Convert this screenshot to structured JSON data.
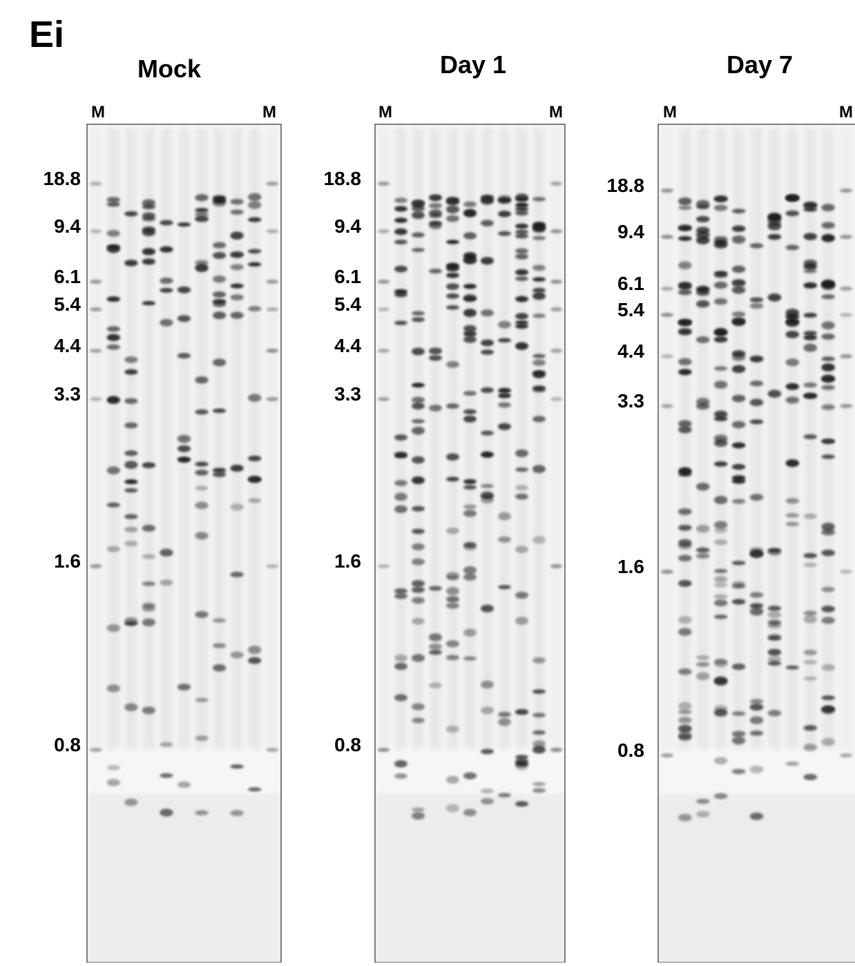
{
  "panel_label": "Ei",
  "gels": [
    {
      "title": "Mock",
      "lane_labels": [
        "M",
        "M"
      ],
      "size_markers": [
        "18.8",
        "9.4",
        "6.1",
        "5.4",
        "4.4",
        "3.3",
        "1.6",
        "0.8"
      ]
    },
    {
      "title": "Day 1",
      "lane_labels": [
        "M",
        "M"
      ],
      "size_markers": [
        "18.8",
        "9.4",
        "6.1",
        "5.4",
        "4.4",
        "3.3",
        "1.6",
        "0.8"
      ]
    },
    {
      "title": "Day 7",
      "lane_labels": [
        "M",
        "M"
      ],
      "size_markers": [
        "18.8",
        "9.4",
        "6.1",
        "5.4",
        "4.4",
        "3.3",
        "1.6",
        "0.8"
      ]
    }
  ]
}
